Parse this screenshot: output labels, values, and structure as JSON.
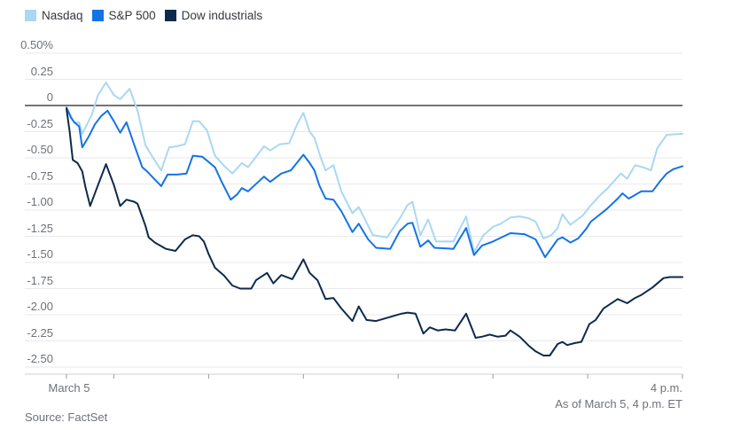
{
  "theme": {
    "background": "#ffffff",
    "gridline": "#e9e9e9",
    "zero_line": "#222222",
    "axis_line": "#d0d0d0",
    "tick": "#999999",
    "axis_text": "#6d7278",
    "legend_text": "#33383d",
    "caption_text": "#6d7278"
  },
  "footer": {
    "as_of": "As of March 5, 4 p.m. ET",
    "source": "Source: FactSet"
  },
  "chart_data": {
    "type": "line",
    "title": "",
    "x_axis": {
      "start_label": "March 5",
      "end_label": "4 p.m.",
      "range_minutes": [
        0,
        390
      ],
      "tick_minutes": [
        0,
        30,
        90,
        150,
        210,
        270,
        330,
        390
      ],
      "note": "x is minutes after 9:30 a.m. ET, hourly ticks through 4 p.m."
    },
    "y_axis": {
      "unit": "%",
      "range": [
        -2.5,
        0.5
      ],
      "tick_labels": [
        "0.50%",
        "0.25",
        "0",
        "-0.25",
        "-0.50",
        "-0.75",
        "-1.00",
        "-1.25",
        "-1.50",
        "-1.75",
        "-2.00",
        "-2.25",
        "-2.50"
      ],
      "tick_values": [
        0.5,
        0.25,
        0,
        -0.25,
        -0.5,
        -0.75,
        -1,
        -1.25,
        -1.5,
        -1.75,
        -2,
        -2.25,
        -2.5
      ],
      "grid": true
    },
    "legend_position": "top-left",
    "series": [
      {
        "id": "nasdaq",
        "name": "Nasdaq",
        "color": "#a9d8f5",
        "end_value": -0.27,
        "points": [
          [
            0,
            -0.02
          ],
          [
            3,
            -0.1
          ],
          [
            5,
            -0.17
          ],
          [
            8,
            -0.16
          ],
          [
            10,
            -0.27
          ],
          [
            13,
            -0.18
          ],
          [
            16,
            -0.09
          ],
          [
            20,
            0.1
          ],
          [
            25,
            0.22
          ],
          [
            30,
            0.1
          ],
          [
            34,
            0.06
          ],
          [
            40,
            0.16
          ],
          [
            45,
            -0.05
          ],
          [
            50,
            -0.38
          ],
          [
            54,
            -0.48
          ],
          [
            60,
            -0.62
          ],
          [
            65,
            -0.4
          ],
          [
            70,
            -0.39
          ],
          [
            75,
            -0.37
          ],
          [
            80,
            -0.15
          ],
          [
            84,
            -0.15
          ],
          [
            89,
            -0.24
          ],
          [
            94,
            -0.48
          ],
          [
            100,
            -0.58
          ],
          [
            105,
            -0.65
          ],
          [
            111,
            -0.55
          ],
          [
            115,
            -0.59
          ],
          [
            125,
            -0.39
          ],
          [
            129,
            -0.43
          ],
          [
            135,
            -0.37
          ],
          [
            141,
            -0.36
          ],
          [
            146,
            -0.18
          ],
          [
            150,
            -0.07
          ],
          [
            154,
            -0.25
          ],
          [
            157,
            -0.31
          ],
          [
            161,
            -0.5
          ],
          [
            164,
            -0.62
          ],
          [
            169,
            -0.57
          ],
          [
            174,
            -0.82
          ],
          [
            181,
            -1.03
          ],
          [
            185,
            -0.97
          ],
          [
            191,
            -1.15
          ],
          [
            194,
            -1.24
          ],
          [
            203,
            -1.26
          ],
          [
            211,
            -1.08
          ],
          [
            216,
            -0.95
          ],
          [
            219,
            -0.92
          ],
          [
            224,
            -1.24
          ],
          [
            229,
            -1.09
          ],
          [
            234,
            -1.3
          ],
          [
            245,
            -1.3
          ],
          [
            253,
            -1.06
          ],
          [
            258,
            -1.4
          ],
          [
            264,
            -1.24
          ],
          [
            270,
            -1.16
          ],
          [
            275,
            -1.13
          ],
          [
            281,
            -1.07
          ],
          [
            287,
            -1.06
          ],
          [
            293,
            -1.08
          ],
          [
            297,
            -1.11
          ],
          [
            302,
            -1.27
          ],
          [
            307,
            -1.24
          ],
          [
            311,
            -1.17
          ],
          [
            314,
            -1.04
          ],
          [
            319,
            -1.14
          ],
          [
            327,
            -1.05
          ],
          [
            331,
            -0.97
          ],
          [
            337,
            -0.87
          ],
          [
            342,
            -0.8
          ],
          [
            351,
            -0.65
          ],
          [
            355,
            -0.7
          ],
          [
            360,
            -0.57
          ],
          [
            365,
            -0.59
          ],
          [
            370,
            -0.62
          ],
          [
            374,
            -0.41
          ],
          [
            380,
            -0.28
          ],
          [
            390,
            -0.27
          ]
        ]
      },
      {
        "id": "sp500",
        "name": "S&P 500",
        "color": "#1473e6",
        "end_value": -0.58,
        "points": [
          [
            0,
            -0.02
          ],
          [
            3,
            -0.12
          ],
          [
            5,
            -0.16
          ],
          [
            8,
            -0.2
          ],
          [
            10,
            -0.4
          ],
          [
            14,
            -0.3
          ],
          [
            18,
            -0.18
          ],
          [
            22,
            -0.1
          ],
          [
            26,
            -0.05
          ],
          [
            30,
            -0.15
          ],
          [
            34,
            -0.26
          ],
          [
            38,
            -0.16
          ],
          [
            43,
            -0.38
          ],
          [
            48,
            -0.59
          ],
          [
            51,
            -0.63
          ],
          [
            60,
            -0.77
          ],
          [
            64,
            -0.66
          ],
          [
            70,
            -0.66
          ],
          [
            76,
            -0.65
          ],
          [
            80,
            -0.48
          ],
          [
            86,
            -0.49
          ],
          [
            94,
            -0.59
          ],
          [
            98,
            -0.72
          ],
          [
            104,
            -0.9
          ],
          [
            108,
            -0.85
          ],
          [
            111,
            -0.79
          ],
          [
            115,
            -0.82
          ],
          [
            125,
            -0.68
          ],
          [
            129,
            -0.73
          ],
          [
            136,
            -0.65
          ],
          [
            142,
            -0.62
          ],
          [
            150,
            -0.47
          ],
          [
            154,
            -0.55
          ],
          [
            157,
            -0.62
          ],
          [
            160,
            -0.76
          ],
          [
            164,
            -0.89
          ],
          [
            169,
            -0.9
          ],
          [
            174,
            -1.01
          ],
          [
            181,
            -1.21
          ],
          [
            185,
            -1.13
          ],
          [
            191,
            -1.28
          ],
          [
            196,
            -1.36
          ],
          [
            205,
            -1.37
          ],
          [
            211,
            -1.2
          ],
          [
            216,
            -1.13
          ],
          [
            219,
            -1.12
          ],
          [
            224,
            -1.35
          ],
          [
            229,
            -1.29
          ],
          [
            233,
            -1.36
          ],
          [
            245,
            -1.37
          ],
          [
            253,
            -1.17
          ],
          [
            258,
            -1.43
          ],
          [
            263,
            -1.34
          ],
          [
            270,
            -1.3
          ],
          [
            281,
            -1.22
          ],
          [
            290,
            -1.23
          ],
          [
            297,
            -1.28
          ],
          [
            303,
            -1.45
          ],
          [
            311,
            -1.28
          ],
          [
            314,
            -1.26
          ],
          [
            319,
            -1.31
          ],
          [
            324,
            -1.27
          ],
          [
            329,
            -1.18
          ],
          [
            332,
            -1.11
          ],
          [
            337,
            -1.05
          ],
          [
            342,
            -0.99
          ],
          [
            349,
            -0.89
          ],
          [
            352,
            -0.84
          ],
          [
            356,
            -0.89
          ],
          [
            364,
            -0.82
          ],
          [
            371,
            -0.82
          ],
          [
            376,
            -0.72
          ],
          [
            380,
            -0.65
          ],
          [
            384,
            -0.61
          ],
          [
            390,
            -0.58
          ]
        ]
      },
      {
        "id": "dow",
        "name": "Dow industrials",
        "color": "#0d2a4d",
        "end_value": -1.64,
        "points": [
          [
            0,
            -0.03
          ],
          [
            2,
            -0.25
          ],
          [
            4,
            -0.52
          ],
          [
            7,
            -0.55
          ],
          [
            10,
            -0.63
          ],
          [
            12,
            -0.78
          ],
          [
            15,
            -0.96
          ],
          [
            20,
            -0.76
          ],
          [
            25,
            -0.56
          ],
          [
            30,
            -0.76
          ],
          [
            34,
            -0.96
          ],
          [
            38,
            -0.9
          ],
          [
            43,
            -0.92
          ],
          [
            45,
            -0.94
          ],
          [
            50,
            -1.15
          ],
          [
            52,
            -1.26
          ],
          [
            56,
            -1.31
          ],
          [
            63,
            -1.37
          ],
          [
            69,
            -1.39
          ],
          [
            75,
            -1.28
          ],
          [
            80,
            -1.24
          ],
          [
            84,
            -1.25
          ],
          [
            87,
            -1.3
          ],
          [
            90,
            -1.42
          ],
          [
            94,
            -1.55
          ],
          [
            100,
            -1.63
          ],
          [
            105,
            -1.72
          ],
          [
            110,
            -1.75
          ],
          [
            117,
            -1.75
          ],
          [
            120,
            -1.67
          ],
          [
            127,
            -1.6
          ],
          [
            131,
            -1.7
          ],
          [
            136,
            -1.62
          ],
          [
            143,
            -1.66
          ],
          [
            150,
            -1.47
          ],
          [
            154,
            -1.6
          ],
          [
            159,
            -1.67
          ],
          [
            164,
            -1.85
          ],
          [
            169,
            -1.84
          ],
          [
            174,
            -1.94
          ],
          [
            181,
            -2.06
          ],
          [
            185,
            -1.92
          ],
          [
            190,
            -2.05
          ],
          [
            196,
            -2.06
          ],
          [
            205,
            -2.02
          ],
          [
            212,
            -1.99
          ],
          [
            216,
            -1.98
          ],
          [
            221,
            -1.99
          ],
          [
            226,
            -2.18
          ],
          [
            230,
            -2.12
          ],
          [
            235,
            -2.15
          ],
          [
            240,
            -2.14
          ],
          [
            246,
            -2.15
          ],
          [
            253,
            -1.99
          ],
          [
            259,
            -2.22
          ],
          [
            263,
            -2.21
          ],
          [
            268,
            -2.19
          ],
          [
            273,
            -2.21
          ],
          [
            278,
            -2.2
          ],
          [
            281,
            -2.15
          ],
          [
            287,
            -2.21
          ],
          [
            293,
            -2.3
          ],
          [
            297,
            -2.35
          ],
          [
            302,
            -2.39
          ],
          [
            306,
            -2.39
          ],
          [
            311,
            -2.28
          ],
          [
            314,
            -2.26
          ],
          [
            317,
            -2.29
          ],
          [
            322,
            -2.27
          ],
          [
            326,
            -2.26
          ],
          [
            331,
            -2.09
          ],
          [
            335,
            -2.05
          ],
          [
            340,
            -1.94
          ],
          [
            349,
            -1.85
          ],
          [
            355,
            -1.89
          ],
          [
            360,
            -1.84
          ],
          [
            364,
            -1.81
          ],
          [
            371,
            -1.74
          ],
          [
            378,
            -1.65
          ],
          [
            382,
            -1.64
          ],
          [
            390,
            -1.64
          ]
        ]
      }
    ]
  }
}
